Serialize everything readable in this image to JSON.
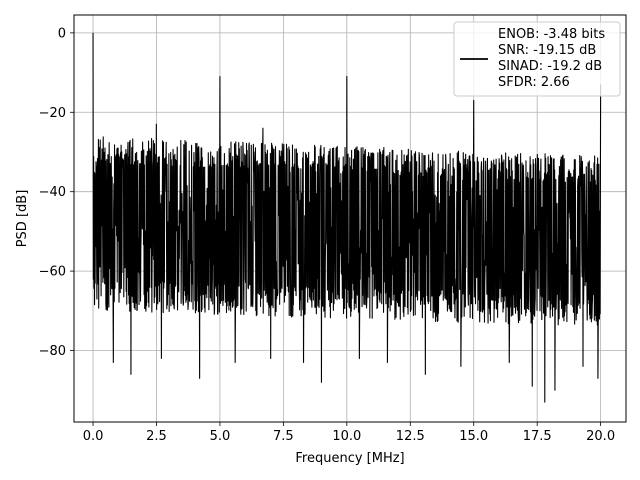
{
  "chart_data": {
    "type": "line",
    "xlabel": "Frequency [MHz]",
    "ylabel": "PSD [dB]",
    "xlim": [
      -0.75,
      21.0
    ],
    "ylim": [
      -98,
      4.5
    ],
    "xticks": [
      0.0,
      2.5,
      5.0,
      7.5,
      10.0,
      12.5,
      15.0,
      17.5,
      20.0
    ],
    "xtick_labels": [
      "0.0",
      "2.5",
      "5.0",
      "7.5",
      "10.0",
      "12.5",
      "15.0",
      "17.5",
      "20.0"
    ],
    "yticks": [
      0,
      -20,
      -40,
      -60,
      -80
    ],
    "ytick_labels": [
      "0",
      "−20",
      "−40",
      "−60",
      "−80"
    ],
    "grid": true,
    "legend_position": "top-right",
    "series": [
      {
        "color": "#000000",
        "noise_floor": {
          "x": [
            0,
            20
          ],
          "top_db": [
            -26,
            -31
          ],
          "bottom_db": [
            -70,
            -74
          ]
        },
        "spikes": [
          {
            "x": 0.0,
            "y": 0
          },
          {
            "x": 2.5,
            "y": -23
          },
          {
            "x": 5.0,
            "y": -11
          },
          {
            "x": 6.7,
            "y": -24
          },
          {
            "x": 10.0,
            "y": -11
          },
          {
            "x": 15.0,
            "y": -17
          },
          {
            "x": 20.0,
            "y": -13
          }
        ],
        "dips": [
          {
            "x": 0.8,
            "y": -83
          },
          {
            "x": 1.5,
            "y": -86
          },
          {
            "x": 2.7,
            "y": -82
          },
          {
            "x": 4.2,
            "y": -87
          },
          {
            "x": 5.6,
            "y": -83
          },
          {
            "x": 7.0,
            "y": -82
          },
          {
            "x": 8.3,
            "y": -83
          },
          {
            "x": 9.0,
            "y": -88
          },
          {
            "x": 10.5,
            "y": -82
          },
          {
            "x": 11.6,
            "y": -83
          },
          {
            "x": 13.1,
            "y": -86
          },
          {
            "x": 14.5,
            "y": -84
          },
          {
            "x": 16.4,
            "y": -83
          },
          {
            "x": 17.3,
            "y": -89
          },
          {
            "x": 17.8,
            "y": -93
          },
          {
            "x": 18.2,
            "y": -90
          },
          {
            "x": 19.3,
            "y": -84
          },
          {
            "x": 19.9,
            "y": -87
          }
        ]
      }
    ],
    "legend": {
      "entries": [
        "ENOB: -3.48 bits",
        "SNR: -19.15 dB",
        "SINAD: -19.2 dB",
        "SFDR: 2.66"
      ]
    }
  }
}
